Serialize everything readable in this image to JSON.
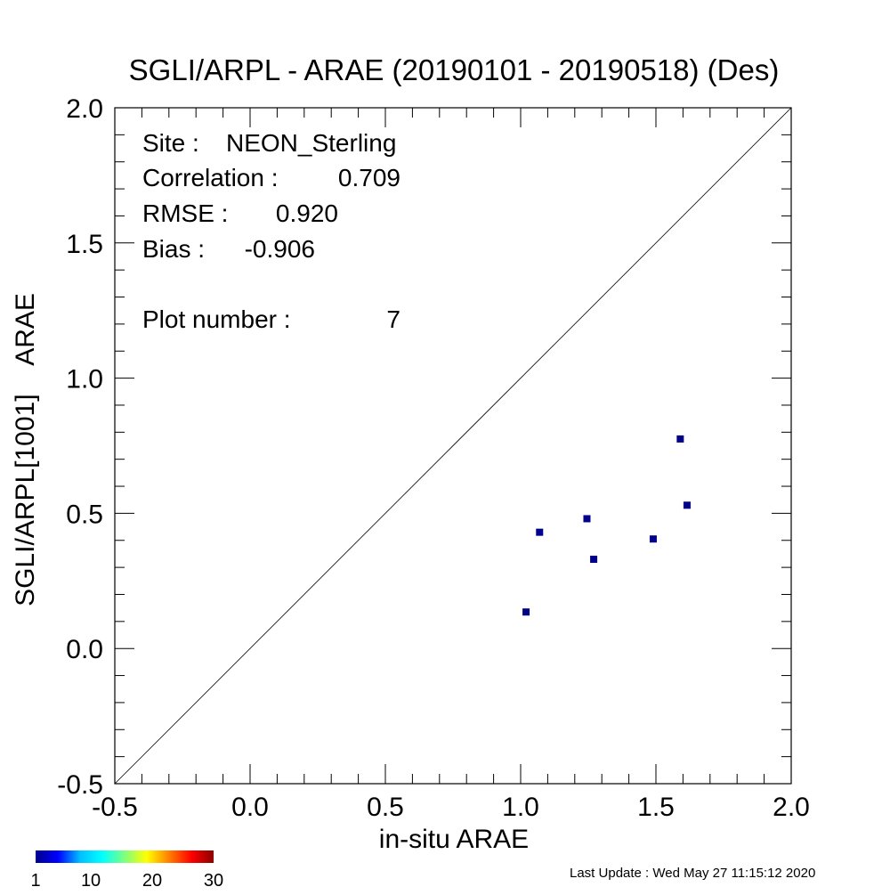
{
  "chart_data": {
    "type": "scatter",
    "title": "SGLI/ARPL - ARAE (20190101 - 20190518) (Des)",
    "xlabel": "in-situ ARAE",
    "ylabel": "SGLI/ARPL[1001]    ARAE",
    "xlim": [
      -0.5,
      2.0
    ],
    "ylim": [
      -0.5,
      2.0
    ],
    "xticks": [
      "-0.5",
      "0.0",
      "0.5",
      "1.0",
      "1.5",
      "2.0"
    ],
    "yticks": [
      "-0.5",
      "0.0",
      "0.5",
      "1.0",
      "1.5",
      "2.0"
    ],
    "grid": false,
    "reference_line": "1:1",
    "marker_color": "#00008b",
    "series": [
      {
        "x": [
          1.02,
          1.07,
          1.245,
          1.27,
          1.49,
          1.59,
          1.615
        ],
        "y": [
          0.135,
          0.43,
          0.48,
          0.33,
          0.405,
          0.775,
          0.53
        ]
      }
    ],
    "stats": [
      {
        "label": "Site :",
        "value": "NEON_Sterling"
      },
      {
        "label": "Correlation :",
        "value": "0.709"
      },
      {
        "label": "RMSE :",
        "value": "0.920"
      },
      {
        "label": "Bias :",
        "value": "-0.906"
      },
      {
        "label": "Plot number :",
        "value": "7"
      }
    ],
    "colorbar": {
      "colors": [
        "#00008b",
        "#0000ff",
        "#00bfff",
        "#00ffff",
        "#7fff7f",
        "#ffff00",
        "#ff7f00",
        "#ff0000",
        "#8b0000"
      ],
      "ticks": [
        "1",
        "10",
        "20",
        "30"
      ]
    }
  },
  "footer": {
    "last_update": "Last Update : Wed May 27 11:15:12 2020"
  }
}
